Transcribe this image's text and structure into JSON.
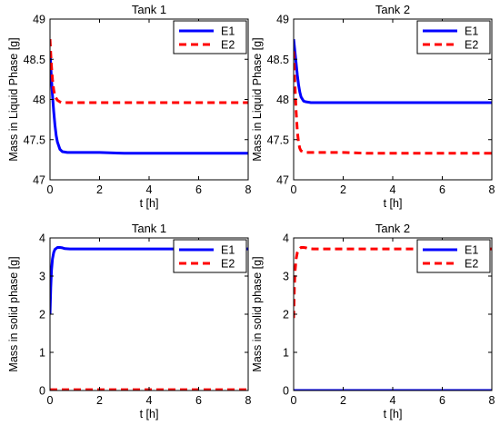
{
  "chart_data": [
    {
      "type": "line",
      "title": "Tank 1",
      "xlabel": "t [h]",
      "ylabel": "Mass in Liquid Phase [g]",
      "xlim": [
        0,
        8
      ],
      "ylim": [
        47,
        49
      ],
      "xticks": [
        0,
        2,
        4,
        6,
        8
      ],
      "yticks": [
        47,
        47.5,
        48,
        48.5,
        49
      ],
      "ytick_labels": [
        "47",
        "47.5",
        "48",
        "48.5",
        "49"
      ],
      "legend": "top-right",
      "series": [
        {
          "name": "E1",
          "color": "#0000ff",
          "style": "solid",
          "x": [
            0,
            0.05,
            0.1,
            0.15,
            0.2,
            0.25,
            0.3,
            0.4,
            0.5,
            0.7,
            1,
            2,
            3,
            4,
            5,
            6,
            7,
            8
          ],
          "y": [
            48.6,
            48.3,
            48.05,
            47.85,
            47.68,
            47.55,
            47.47,
            47.38,
            47.35,
            47.34,
            47.34,
            47.34,
            47.33,
            47.33,
            47.33,
            47.33,
            47.33,
            47.33
          ]
        },
        {
          "name": "E2",
          "color": "#ff0000",
          "style": "dashed",
          "x": [
            0,
            0.05,
            0.1,
            0.15,
            0.2,
            0.3,
            0.4,
            0.5,
            0.7,
            1,
            2,
            3,
            4,
            5,
            6,
            7,
            8
          ],
          "y": [
            48.75,
            48.45,
            48.25,
            48.12,
            48.04,
            47.99,
            47.97,
            47.96,
            47.96,
            47.96,
            47.96,
            47.96,
            47.96,
            47.96,
            47.96,
            47.96,
            47.96
          ]
        }
      ]
    },
    {
      "type": "line",
      "title": "Tank 2",
      "xlabel": "t [h]",
      "ylabel": "Mass in Liquid Phase [g]",
      "xlim": [
        0,
        8
      ],
      "ylim": [
        47,
        49
      ],
      "xticks": [
        0,
        2,
        4,
        6,
        8
      ],
      "yticks": [
        47,
        47.5,
        48,
        48.5,
        49
      ],
      "ytick_labels": [
        "47",
        "47.5",
        "48",
        "48.5",
        "49"
      ],
      "legend": "top-right",
      "series": [
        {
          "name": "E1",
          "color": "#0000ff",
          "style": "solid",
          "x": [
            0,
            0.05,
            0.1,
            0.15,
            0.2,
            0.25,
            0.3,
            0.4,
            0.5,
            0.7,
            1,
            2,
            3,
            4,
            5,
            6,
            7,
            8
          ],
          "y": [
            48.75,
            48.6,
            48.45,
            48.3,
            48.18,
            48.09,
            48.03,
            47.98,
            47.97,
            47.96,
            47.96,
            47.96,
            47.96,
            47.96,
            47.96,
            47.96,
            47.96,
            47.96
          ]
        },
        {
          "name": "E2",
          "color": "#ff0000",
          "style": "dashed",
          "x": [
            0,
            0.05,
            0.1,
            0.15,
            0.2,
            0.25,
            0.3,
            0.4,
            0.5,
            0.7,
            1,
            2,
            3,
            4,
            5,
            6,
            7,
            8
          ],
          "y": [
            48.6,
            48.2,
            47.85,
            47.6,
            47.46,
            47.39,
            47.36,
            47.35,
            47.34,
            47.34,
            47.34,
            47.34,
            47.33,
            47.33,
            47.33,
            47.33,
            47.33,
            47.33
          ]
        }
      ]
    },
    {
      "type": "line",
      "title": "Tank 1",
      "xlabel": "t [h]",
      "ylabel": "Mass in solid phase [g]",
      "xlim": [
        0,
        8
      ],
      "ylim": [
        0,
        4
      ],
      "xticks": [
        0,
        2,
        4,
        6,
        8
      ],
      "yticks": [
        0,
        1,
        2,
        3,
        4
      ],
      "ytick_labels": [
        "0",
        "1",
        "2",
        "3",
        "4"
      ],
      "legend": "top-right",
      "series": [
        {
          "name": "E1",
          "color": "#0000ff",
          "style": "solid",
          "x": [
            0,
            0.03,
            0.06,
            0.1,
            0.15,
            0.2,
            0.3,
            0.4,
            0.5,
            0.6,
            0.8,
            1,
            2,
            3,
            4,
            5,
            6,
            7,
            8
          ],
          "y": [
            2.0,
            2.7,
            3.15,
            3.45,
            3.62,
            3.7,
            3.75,
            3.75,
            3.74,
            3.72,
            3.71,
            3.71,
            3.71,
            3.71,
            3.71,
            3.71,
            3.71,
            3.71,
            3.71
          ]
        },
        {
          "name": "E2",
          "color": "#ff0000",
          "style": "dashed",
          "x": [
            0,
            8
          ],
          "y": [
            0.02,
            0.02
          ]
        }
      ]
    },
    {
      "type": "line",
      "title": "Tank 2",
      "xlabel": "t [h]",
      "ylabel": "Mass in solid phase [g]",
      "xlim": [
        0,
        8
      ],
      "ylim": [
        0,
        4
      ],
      "xticks": [
        0,
        2,
        4,
        6,
        8
      ],
      "yticks": [
        0,
        1,
        2,
        3,
        4
      ],
      "ytick_labels": [
        "0",
        "1",
        "2",
        "3",
        "4"
      ],
      "legend": "top-right",
      "series": [
        {
          "name": "E1",
          "color": "#0000ff",
          "style": "solid",
          "x": [
            0,
            8
          ],
          "y": [
            0.0,
            0.0
          ]
        },
        {
          "name": "E2",
          "color": "#ff0000",
          "style": "dashed",
          "x": [
            0,
            0.03,
            0.06,
            0.1,
            0.15,
            0.2,
            0.3,
            0.4,
            0.5,
            0.6,
            0.8,
            1,
            2,
            3,
            4,
            5,
            6,
            7,
            8
          ],
          "y": [
            1.9,
            2.7,
            3.15,
            3.45,
            3.62,
            3.7,
            3.75,
            3.75,
            3.74,
            3.72,
            3.71,
            3.71,
            3.71,
            3.71,
            3.71,
            3.71,
            3.71,
            3.71,
            3.71
          ]
        }
      ]
    }
  ]
}
